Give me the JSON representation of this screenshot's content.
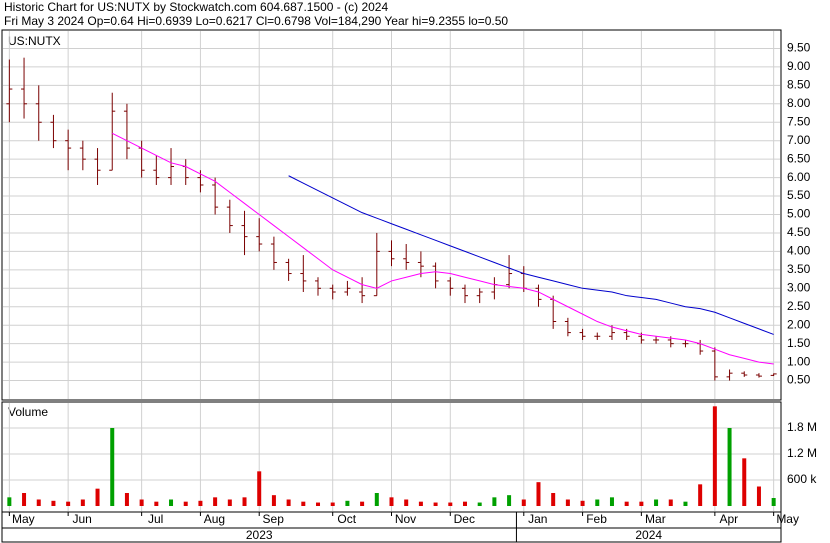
{
  "chart_data": [
    {
      "type": "ohlc",
      "title": "Historic Chart for US:NUTX by Stockwatch.com 604.687.1500 - (c) 2024",
      "subtitle": "Fri May  3 2024  Op=0.64  Hi=0.6939  Lo=0.6217  Cl=0.6798  Vol=184,290  Year hi=9.2355  lo=0.50",
      "label": "US:NUTX",
      "categories": [
        "May",
        null,
        null,
        null,
        "Jun",
        null,
        null,
        null,
        null,
        "Jul",
        null,
        null,
        null,
        "Aug",
        null,
        null,
        null,
        "Sep",
        null,
        null,
        null,
        null,
        "Oct",
        null,
        null,
        null,
        "Nov",
        null,
        null,
        null,
        "Dec",
        null,
        null,
        null,
        null,
        "Jan",
        null,
        null,
        null,
        "Feb",
        null,
        null,
        null,
        "Mar",
        null,
        null,
        null,
        null,
        "Apr",
        null,
        null,
        null,
        "May"
      ],
      "years": [
        {
          "label": "2023",
          "from": 0
        },
        {
          "label": "2024",
          "from": 35
        }
      ],
      "open": [
        8.0,
        8.4,
        8.0,
        7.5,
        7.0,
        6.8,
        6.5,
        6.2,
        7.8,
        6.8,
        6.2,
        6.0,
        6.3,
        6.0,
        5.8,
        5.2,
        4.7,
        4.4,
        4.2,
        3.7,
        3.4,
        3.2,
        3.0,
        2.9,
        2.9,
        2.8,
        4.0,
        3.8,
        3.7,
        3.6,
        3.2,
        3.0,
        2.8,
        2.9,
        3.1,
        3.4,
        3.0,
        2.7,
        2.1,
        1.8,
        1.7,
        1.7,
        1.8,
        1.7,
        1.6,
        1.6,
        1.5,
        1.5,
        1.3,
        0.6,
        0.7,
        0.65,
        0.64
      ],
      "high": [
        9.2,
        9.25,
        8.5,
        7.7,
        7.3,
        7.0,
        6.8,
        8.3,
        8.0,
        7.0,
        6.6,
        6.8,
        6.5,
        6.2,
        6.0,
        5.4,
        5.1,
        4.9,
        4.4,
        3.8,
        3.9,
        3.3,
        3.1,
        3.2,
        3.3,
        4.5,
        4.3,
        4.2,
        4.0,
        3.7,
        3.3,
        3.1,
        3.0,
        3.3,
        3.9,
        3.6,
        3.1,
        2.8,
        2.2,
        1.9,
        1.8,
        2.0,
        1.9,
        1.8,
        1.7,
        1.7,
        1.6,
        1.6,
        1.4,
        0.8,
        0.75,
        0.7,
        0.6939
      ],
      "low": [
        7.5,
        7.6,
        7.0,
        6.8,
        6.2,
        6.2,
        5.8,
        6.2,
        6.5,
        6.0,
        5.8,
        5.8,
        5.8,
        5.6,
        5.0,
        4.5,
        3.9,
        4.0,
        3.5,
        3.2,
        2.9,
        2.8,
        2.7,
        2.8,
        2.6,
        2.8,
        3.6,
        3.5,
        3.3,
        3.0,
        2.8,
        2.6,
        2.6,
        2.7,
        3.0,
        2.9,
        2.5,
        1.9,
        1.7,
        1.6,
        1.6,
        1.6,
        1.6,
        1.5,
        1.5,
        1.4,
        1.4,
        1.2,
        0.5,
        0.5,
        0.6,
        0.58,
        0.6217
      ],
      "close": [
        8.4,
        8.0,
        7.5,
        7.0,
        6.8,
        6.5,
        6.2,
        7.8,
        6.8,
        6.2,
        6.0,
        6.3,
        6.0,
        5.8,
        5.2,
        4.7,
        4.4,
        4.2,
        3.7,
        3.4,
        3.2,
        3.0,
        2.9,
        3.0,
        2.8,
        4.0,
        3.8,
        3.7,
        3.6,
        3.2,
        3.0,
        2.8,
        2.9,
        3.1,
        3.4,
        3.0,
        2.7,
        2.1,
        1.8,
        1.7,
        1.7,
        1.8,
        1.7,
        1.6,
        1.6,
        1.5,
        1.5,
        1.3,
        0.6,
        0.7,
        0.65,
        0.62,
        0.6798
      ],
      "color": "#7a0000",
      "lines": [
        {
          "color": "#ff00ff",
          "values": [
            null,
            null,
            null,
            null,
            null,
            null,
            null,
            7.2,
            7.0,
            6.8,
            6.6,
            6.4,
            6.3,
            6.1,
            5.9,
            5.6,
            5.3,
            5.0,
            4.7,
            4.4,
            4.1,
            3.8,
            3.5,
            3.3,
            3.1,
            3.0,
            3.2,
            3.3,
            3.4,
            3.45,
            3.4,
            3.3,
            3.2,
            3.1,
            3.05,
            3.0,
            2.9,
            2.7,
            2.5,
            2.3,
            2.1,
            1.95,
            1.85,
            1.75,
            1.7,
            1.65,
            1.6,
            1.5,
            1.35,
            1.2,
            1.1,
            1.0,
            0.95
          ]
        },
        {
          "color": "#0000cc",
          "values": [
            null,
            null,
            null,
            null,
            null,
            null,
            null,
            null,
            null,
            null,
            null,
            null,
            null,
            null,
            null,
            null,
            null,
            null,
            null,
            6.05,
            5.85,
            5.65,
            5.45,
            5.25,
            5.05,
            4.9,
            4.75,
            4.6,
            4.45,
            4.3,
            4.15,
            4.0,
            3.85,
            3.7,
            3.55,
            3.4,
            3.3,
            3.2,
            3.1,
            3.0,
            2.95,
            2.9,
            2.8,
            2.75,
            2.7,
            2.6,
            2.5,
            2.45,
            2.35,
            2.2,
            2.05,
            1.9,
            1.75
          ]
        }
      ],
      "ylim": [
        0,
        10
      ],
      "yticks": [
        {
          "value": 0.5,
          "label": "0.50"
        },
        {
          "value": 1,
          "label": "1.00"
        },
        {
          "value": 1.5,
          "label": "1.50"
        },
        {
          "value": 2,
          "label": "2.00"
        },
        {
          "value": 2.5,
          "label": "2.50"
        },
        {
          "value": 3,
          "label": "3.00"
        },
        {
          "value": 3.5,
          "label": "3.50"
        },
        {
          "value": 4,
          "label": "4.00"
        },
        {
          "value": 4.5,
          "label": "4.50"
        },
        {
          "value": 5,
          "label": "5.00"
        },
        {
          "value": 5.5,
          "label": "5.50"
        },
        {
          "value": 6,
          "label": "6.00"
        },
        {
          "value": 6.5,
          "label": "6.50"
        },
        {
          "value": 7,
          "label": "7.00"
        },
        {
          "value": 7.5,
          "label": "7.50"
        },
        {
          "value": 8,
          "label": "8.00"
        },
        {
          "value": 8.5,
          "label": "8.50"
        },
        {
          "value": 9,
          "label": "9.00"
        },
        {
          "value": 9.5,
          "label": "9.50"
        }
      ],
      "grid": true
    },
    {
      "type": "bar",
      "title": "Volume",
      "values": [
        200000,
        300000,
        150000,
        120000,
        100000,
        150000,
        400000,
        1800000,
        300000,
        150000,
        100000,
        150000,
        100000,
        120000,
        200000,
        150000,
        200000,
        800000,
        250000,
        150000,
        100000,
        80000,
        80000,
        120000,
        100000,
        300000,
        200000,
        150000,
        100000,
        80000,
        80000,
        100000,
        80000,
        200000,
        250000,
        150000,
        550000,
        300000,
        150000,
        120000,
        150000,
        200000,
        100000,
        100000,
        150000,
        150000,
        100000,
        500000,
        2300000,
        1800000,
        1100000,
        450000,
        184290
      ],
      "up_color": "#00a000",
      "down_color": "#dd0000",
      "ylim": [
        0,
        2400000
      ],
      "yticks": [
        {
          "value": 600000,
          "label": "600 k"
        },
        {
          "value": 1200000,
          "label": "1.2 M"
        },
        {
          "value": 1800000,
          "label": "1.8 M"
        }
      ],
      "grid": true
    }
  ]
}
